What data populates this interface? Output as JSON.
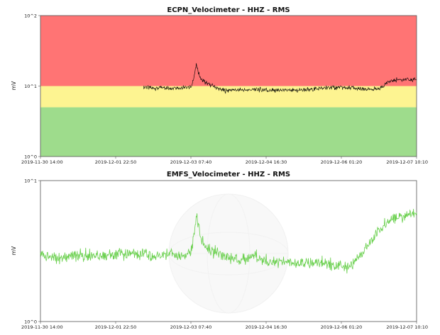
{
  "chart_data": [
    {
      "type": "line",
      "title": "ECPN_Velocimeter - HHZ - RMS",
      "ylabel": "mV",
      "yscale": "log",
      "ylim": [
        1,
        100
      ],
      "y_tick_labels": [
        "10^0",
        "10^1",
        "10^2"
      ],
      "xlim": [
        "2019-11-30 14:00",
        "2019-12-07 10:10"
      ],
      "x_tick_labels": [
        "2019-11-30 14:00",
        "2019-12-01 22:50",
        "2019-12-03 07:40",
        "2019-12-04 16:30",
        "2019-12-06 01:20",
        "2019-12-07 10:10"
      ],
      "bands": [
        {
          "from": 1,
          "to": 5,
          "color": "#9edc8c"
        },
        {
          "from": 5,
          "to": 10,
          "color": "#fdf491"
        },
        {
          "from": 10,
          "to": 100,
          "color": "#ff7474"
        }
      ],
      "series": [
        {
          "color": "#000000",
          "x": [
            "2019-12-02 11:00",
            "2019-12-02 17:00",
            "2019-12-02 23:00",
            "2019-12-03 05:00",
            "2019-12-03 08:00",
            "2019-12-03 10:00",
            "2019-12-03 12:00",
            "2019-12-03 14:00",
            "2019-12-03 17:00",
            "2019-12-03 20:00",
            "2019-12-03 23:00",
            "2019-12-04 04:00",
            "2019-12-04 08:00",
            "2019-12-04 12:00",
            "2019-12-04 18:00",
            "2019-12-05 00:00",
            "2019-12-05 06:00",
            "2019-12-05 12:00",
            "2019-12-05 18:00",
            "2019-12-06 00:00",
            "2019-12-06 06:00",
            "2019-12-06 12:00",
            "2019-12-06 18:00",
            "2019-12-06 22:00",
            "2019-12-07 02:00",
            "2019-12-07 06:00",
            "2019-12-07 10:10"
          ],
          "y": [
            9.6,
            9.3,
            9.5,
            9.5,
            9.8,
            20.0,
            12.5,
            11.2,
            10.1,
            9.0,
            8.6,
            8.8,
            8.8,
            8.9,
            8.7,
            8.7,
            8.6,
            9.0,
            9.4,
            9.5,
            9.3,
            8.9,
            9.2,
            11.5,
            12.4,
            12.2,
            12.4
          ]
        }
      ]
    },
    {
      "type": "line",
      "title": "EMFS_Velocimeter - HHZ - RMS",
      "ylabel": "mV",
      "yscale": "log",
      "ylim": [
        1,
        10
      ],
      "y_tick_labels": [
        "10^0",
        "10^1"
      ],
      "xlim": [
        "2019-11-30 14:00",
        "2019-12-07 10:10"
      ],
      "x_tick_labels": [
        "2019-11-30 14:00",
        "2019-12-01 22:50",
        "2019-12-03 07:40",
        "2019-12-04 16:30",
        "2019-12-06 01:20",
        "2019-12-07 10:10"
      ],
      "series": [
        {
          "color": "#6ad04e",
          "x": [
            "2019-11-30 14:00",
            "2019-11-30 22:00",
            "2019-12-01 06:00",
            "2019-12-01 14:00",
            "2019-12-01 22:00",
            "2019-12-02 06:00",
            "2019-12-02 14:00",
            "2019-12-02 22:00",
            "2019-12-03 05:00",
            "2019-12-03 08:00",
            "2019-12-03 10:00",
            "2019-12-03 12:00",
            "2019-12-03 14:00",
            "2019-12-03 17:00",
            "2019-12-03 20:00",
            "2019-12-03 23:00",
            "2019-12-04 04:00",
            "2019-12-04 08:00",
            "2019-12-04 12:00",
            "2019-12-04 18:00",
            "2019-12-05 00:00",
            "2019-12-05 06:00",
            "2019-12-05 12:00",
            "2019-12-05 18:00",
            "2019-12-05 22:00",
            "2019-12-06 04:00",
            "2019-12-06 08:00",
            "2019-12-06 12:00",
            "2019-12-06 16:00",
            "2019-12-06 20:00",
            "2019-12-07 00:00",
            "2019-12-07 04:00",
            "2019-12-07 10:10"
          ],
          "y": [
            2.95,
            2.85,
            2.95,
            2.9,
            3.0,
            3.05,
            2.95,
            3.0,
            2.9,
            3.1,
            5.7,
            3.9,
            3.4,
            3.2,
            3.0,
            2.85,
            2.75,
            2.8,
            2.9,
            2.65,
            2.7,
            2.6,
            2.65,
            2.6,
            2.55,
            2.45,
            2.7,
            3.3,
            4.2,
            4.8,
            5.4,
            5.6,
            5.9
          ]
        }
      ]
    }
  ]
}
